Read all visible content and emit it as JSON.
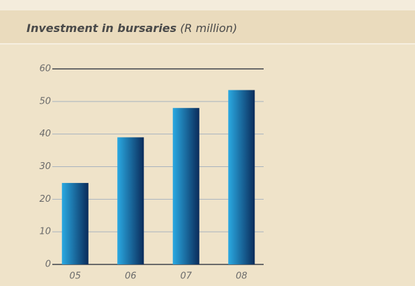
{
  "chart_data": {
    "type": "bar",
    "title": "Investment in bursaries",
    "subtitle": "(R million)",
    "categories": [
      "05",
      "06",
      "07",
      "08"
    ],
    "values": [
      25,
      39,
      48,
      53.5
    ],
    "color": [
      "#2aa9e2",
      "#0a2b5a"
    ],
    "ylim": [
      0,
      60
    ],
    "yticks": [
      0,
      10,
      20,
      30,
      40,
      50,
      60
    ],
    "grid": true
  }
}
